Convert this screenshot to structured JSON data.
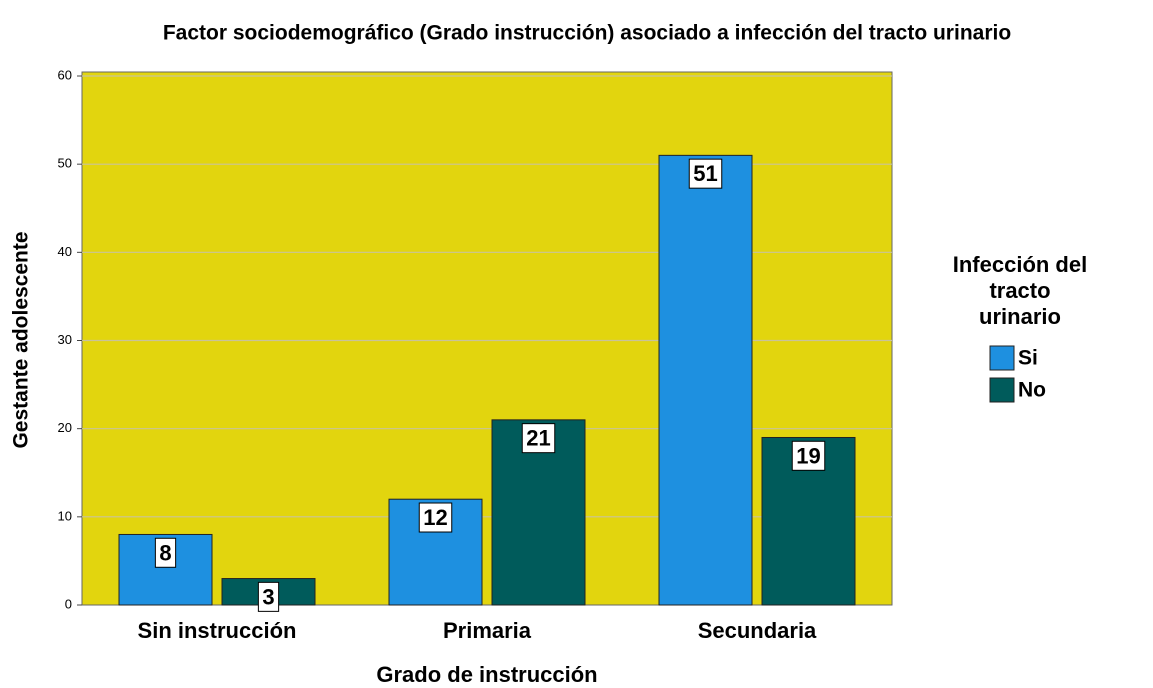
{
  "chart_data": {
    "type": "bar",
    "title": "Factor sociodemográfico (Grado instrucción) asociado a infección del tracto urinario",
    "x_label": "Grado de instrucción",
    "y_label": "Gestante adolescente",
    "legend_title": "Infección del tracto urinario",
    "categories": [
      "Sin instrucción",
      "Primaria",
      "Secundaria"
    ],
    "series": [
      {
        "name": "Si",
        "color": "#1e90e0",
        "values": [
          8,
          12,
          51
        ]
      },
      {
        "name": "No",
        "color": "#005b5b",
        "values": [
          3,
          21,
          19
        ]
      }
    ],
    "ylim": [
      0,
      60
    ],
    "yticks": [
      0,
      10,
      20,
      30,
      40,
      50,
      60
    ],
    "grid": true,
    "legend": "right"
  }
}
